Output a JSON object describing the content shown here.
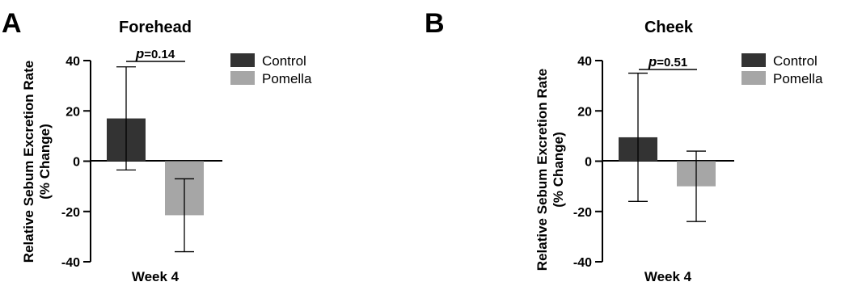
{
  "chart_data": [
    {
      "type": "bar",
      "panel_letter": "A",
      "title": "Forehead",
      "ylabel": "Relative Sebum Excretion Rate",
      "ylabel2": "(% Change)",
      "xlabel": "Week 4",
      "categories": [
        "Week 4"
      ],
      "series": [
        {
          "name": "Control",
          "values": [
            17
          ],
          "error": [
            20.5
          ],
          "color": "#333333"
        },
        {
          "name": "Pomella",
          "values": [
            -21.5
          ],
          "error": [
            14.5
          ],
          "color": "#a6a6a6"
        }
      ],
      "ylim": [
        -40,
        40
      ],
      "yticks": [
        40,
        20,
        0,
        -20,
        -40
      ],
      "ytick_labels": [
        "40",
        "20",
        "0",
        "-20",
        "-40"
      ],
      "annotation": {
        "prefix": "p",
        "text": "=0.14"
      },
      "legend_position": "top-right"
    },
    {
      "type": "bar",
      "panel_letter": "B",
      "title": "Cheek",
      "ylabel": "Relative Sebum Excretion Rate",
      "ylabel2": "(% Change)",
      "xlabel": "Week 4",
      "categories": [
        "Week 4"
      ],
      "series": [
        {
          "name": "Control",
          "values": [
            9.5
          ],
          "error": [
            25.5
          ],
          "color": "#333333"
        },
        {
          "name": "Pomella",
          "values": [
            -10
          ],
          "error": [
            14
          ],
          "color": "#a6a6a6"
        }
      ],
      "ylim": [
        -40,
        40
      ],
      "yticks": [
        40,
        20,
        0,
        -20,
        -40
      ],
      "ytick_labels": [
        "40",
        "20",
        "0",
        "-20",
        "-40"
      ],
      "annotation": {
        "prefix": "p",
        "text": "=0.51"
      },
      "legend_position": "top-right"
    }
  ]
}
